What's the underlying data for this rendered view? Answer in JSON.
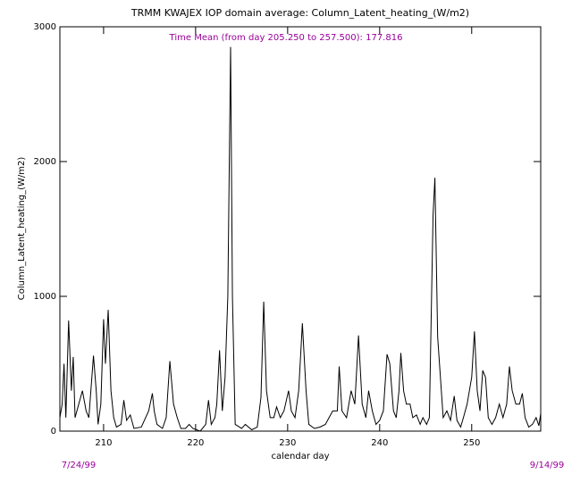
{
  "chart_data": {
    "type": "line",
    "title": "TRMM KWAJEX IOP domain average: Column_Latent_heating_(W/m2)",
    "annotation": "Time Mean (from day 205.250 to 257.500): 177.816",
    "y_label": "Column_Latent_heating_(W/m2)",
    "x_label": "calendar day",
    "start_date": "7/24/99",
    "end_date": "9/14/99",
    "xlim": [
      205.25,
      257.5
    ],
    "ylim": [
      0,
      3000
    ],
    "xticks": [
      210,
      220,
      230,
      240,
      250
    ],
    "yticks": [
      0,
      1000,
      2000,
      3000
    ],
    "annotation_color": "#990099",
    "x": [
      205.25,
      205.5,
      205.7,
      205.9,
      206.2,
      206.5,
      206.7,
      206.9,
      207.3,
      207.7,
      208.1,
      208.4,
      208.9,
      209.2,
      209.4,
      209.7,
      210.0,
      210.2,
      210.5,
      210.8,
      211.1,
      211.4,
      211.9,
      212.2,
      212.5,
      212.9,
      213.3,
      214.1,
      214.9,
      215.3,
      215.5,
      215.8,
      216.4,
      216.8,
      217.2,
      217.6,
      218.0,
      218.4,
      218.9,
      219.3,
      219.7,
      220.5,
      221.1,
      221.4,
      221.7,
      222.1,
      222.3,
      222.6,
      222.9,
      223.2,
      223.5,
      223.8,
      224.0,
      224.3,
      225.0,
      225.4,
      226.1,
      226.7,
      227.1,
      227.4,
      227.7,
      228.1,
      228.5,
      228.8,
      229.2,
      229.6,
      230.1,
      230.4,
      230.8,
      231.2,
      231.6,
      232.0,
      232.3,
      232.9,
      233.5,
      234.1,
      234.5,
      234.9,
      235.4,
      235.6,
      235.9,
      236.4,
      236.9,
      237.3,
      237.7,
      238.1,
      238.5,
      238.8,
      239.2,
      239.6,
      240.0,
      240.4,
      240.8,
      241.1,
      241.5,
      241.8,
      242.1,
      242.3,
      242.6,
      242.9,
      243.3,
      243.6,
      244.0,
      244.4,
      244.7,
      245.1,
      245.4,
      245.8,
      246.0,
      246.3,
      246.6,
      246.9,
      247.3,
      247.7,
      248.1,
      248.4,
      248.8,
      249.1,
      249.5,
      250.0,
      250.3,
      250.6,
      250.9,
      251.2,
      251.5,
      251.8,
      252.2,
      252.6,
      253.0,
      253.4,
      253.8,
      254.1,
      254.4,
      254.8,
      255.2,
      255.5,
      255.8,
      256.2,
      256.6,
      257.0,
      257.3,
      257.5
    ],
    "series": [
      {
        "name": "Column_Latent_heating",
        "color": "#000000",
        "values": [
          100,
          200,
          500,
          100,
          820,
          300,
          550,
          100,
          200,
          300,
          150,
          100,
          560,
          300,
          50,
          200,
          830,
          500,
          900,
          300,
          100,
          30,
          50,
          230,
          80,
          120,
          20,
          30,
          150,
          280,
          150,
          50,
          20,
          100,
          520,
          200,
          100,
          20,
          20,
          50,
          20,
          0,
          50,
          230,
          50,
          100,
          200,
          600,
          150,
          400,
          1000,
          2850,
          1000,
          50,
          20,
          50,
          10,
          30,
          250,
          960,
          300,
          100,
          100,
          180,
          100,
          150,
          300,
          150,
          100,
          300,
          800,
          300,
          50,
          20,
          30,
          50,
          100,
          150,
          150,
          480,
          150,
          100,
          300,
          200,
          710,
          200,
          100,
          300,
          150,
          50,
          80,
          150,
          570,
          500,
          150,
          100,
          300,
          580,
          300,
          200,
          200,
          100,
          120,
          50,
          100,
          50,
          100,
          1600,
          1880,
          700,
          400,
          100,
          150,
          80,
          260,
          80,
          30,
          100,
          200,
          400,
          740,
          300,
          150,
          450,
          400,
          100,
          50,
          100,
          200,
          100,
          200,
          480,
          300,
          200,
          200,
          280,
          100,
          30,
          50,
          100,
          40,
          130
        ]
      }
    ]
  }
}
